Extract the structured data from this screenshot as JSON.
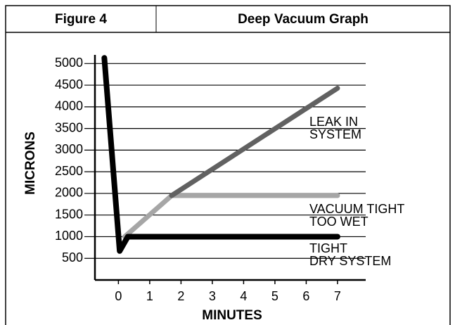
{
  "header": {
    "figure": "Figure 4",
    "title": "Deep Vacuum Graph"
  },
  "chart_data": {
    "type": "line",
    "xlabel": "MINUTES",
    "ylabel": "MICRONS",
    "xlim": [
      -0.75,
      7.9
    ],
    "ylim": [
      0,
      5200
    ],
    "xticks": [
      0,
      1,
      2,
      3,
      4,
      5,
      6,
      7
    ],
    "yticks": [
      500,
      1000,
      1500,
      2000,
      2500,
      3000,
      3500,
      4000,
      4500,
      5000
    ],
    "grid": true,
    "series": [
      {
        "name": "VACUUM TIGHT TOO WET",
        "label": [
          "VACUUM TIGHT",
          "TOO WET"
        ],
        "color": "#a6a6a6",
        "x": [
          0.2,
          1.7,
          7
        ],
        "values": [
          1000,
          1950,
          1950
        ]
      },
      {
        "name": "LEAK IN SYSTEM",
        "label": [
          "LEAK IN",
          "SYSTEM"
        ],
        "color": "#616161",
        "x": [
          1.7,
          7
        ],
        "values": [
          1950,
          4430
        ]
      },
      {
        "name": "TIGHT DRY SYSTEM",
        "label": [
          "TIGHT",
          "DRY SYSTEM"
        ],
        "color": "#000000",
        "x": [
          -0.45,
          0.04,
          0.3,
          7
        ],
        "values": [
          5130,
          670,
          1000,
          1000
        ]
      }
    ]
  }
}
